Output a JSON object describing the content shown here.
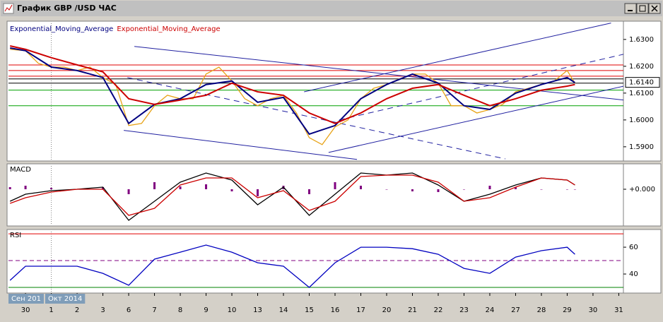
{
  "window": {
    "title": "График GBP /USD ЧАС"
  },
  "chart_data": [
    {
      "type": "line",
      "ylim": [
        1.5847,
        1.6368
      ],
      "yticks": [
        {
          "value": 1.63,
          "label": "1.6300"
        },
        {
          "value": 1.62,
          "label": "1.6200"
        },
        {
          "value": 1.61,
          "label": "1.6100"
        },
        {
          "value": 1.6,
          "label": "1.6000"
        },
        {
          "value": 1.59,
          "label": "1.5900"
        }
      ],
      "current_price": {
        "value": 1.614,
        "label": "1.6140"
      },
      "x": [
        -0.6,
        0,
        1,
        2,
        3,
        4,
        5,
        6,
        7,
        8,
        9,
        10,
        11,
        12,
        13,
        14,
        15,
        16,
        17,
        18,
        19,
        20,
        21,
        21.3
      ],
      "series": [
        {
          "color": "#e8a317",
          "x": [
            -0.6,
            0,
            0.5,
            1,
            1.5,
            2,
            2.5,
            3,
            3.5,
            4,
            4.5,
            5,
            5.5,
            6,
            6.5,
            7,
            7.5,
            8,
            8.5,
            9,
            9.5,
            10,
            10.5,
            11,
            11.5,
            12,
            12.5,
            13,
            13.5,
            14,
            14.5,
            15,
            15.5,
            16,
            16.5,
            17,
            17.5,
            18,
            18.5,
            19,
            19.5,
            20,
            20.5,
            21,
            21.3
          ],
          "values": [
            1.6263,
            1.6258,
            1.6211,
            1.6197,
            1.6197,
            1.6184,
            1.6197,
            1.6158,
            1.6132,
            1.5979,
            1.5987,
            1.6053,
            1.6092,
            1.6079,
            1.6079,
            1.6171,
            1.6197,
            1.6145,
            1.6079,
            1.6053,
            1.6079,
            1.6092,
            1.6026,
            1.5934,
            1.5908,
            1.5974,
            1.6,
            1.6079,
            1.6118,
            1.6132,
            1.6153,
            1.6171,
            1.6171,
            1.6137,
            1.6053,
            1.6053,
            1.6026,
            1.6039,
            1.6058,
            1.6105,
            1.6118,
            1.6132,
            1.6145,
            1.6184,
            1.6137
          ]
        },
        {
          "name": "Exponential_Moving_Average",
          "color": "#000080",
          "values": [
            1.6268,
            1.6258,
            1.6197,
            1.6184,
            1.6158,
            1.5987,
            1.6058,
            1.6079,
            1.6132,
            1.6145,
            1.6066,
            1.6084,
            1.5947,
            1.5979,
            1.6079,
            1.6132,
            1.6171,
            1.6137,
            1.6053,
            1.6039,
            1.61,
            1.6132,
            1.6158,
            1.6139
          ]
        },
        {
          "name": "Exponential_Moving_Average",
          "color": "#cc0000",
          "values": [
            1.6276,
            1.6263,
            1.6232,
            1.6205,
            1.6179,
            1.6079,
            1.6058,
            1.6074,
            1.6092,
            1.6137,
            1.6105,
            1.6092,
            1.6026,
            1.5987,
            1.6026,
            1.6079,
            1.6118,
            1.6132,
            1.6092,
            1.6053,
            1.6079,
            1.6111,
            1.6126,
            1.6132
          ]
        }
      ],
      "levels": [
        {
          "value": 1.6205,
          "color": "#e00000"
        },
        {
          "value": 1.6184,
          "color": "#e00000"
        },
        {
          "value": 1.6163,
          "color": "#e00000"
        },
        {
          "value": 1.6153,
          "color": "#000000"
        },
        {
          "value": 1.6137,
          "color": "#000000"
        },
        {
          "value": 1.6111,
          "color": "#00a000"
        },
        {
          "value": 1.6053,
          "color": "#00a000"
        }
      ],
      "trendlines": [
        {
          "x": [
            4.22,
            23.2
          ],
          "y": [
            1.6274,
            1.6074
          ],
          "dashed": false
        },
        {
          "x": [
            3.81,
            12.85
          ],
          "y": [
            1.5961,
            1.5853
          ],
          "dashed": false
        },
        {
          "x": [
            3.95,
            18.6
          ],
          "y": [
            1.6158,
            1.5855
          ],
          "dashed": true
        },
        {
          "x": [
            11.75,
            23.2
          ],
          "y": [
            1.5879,
            1.6126
          ],
          "dashed": false
        },
        {
          "x": [
            12.16,
            23.2
          ],
          "y": [
            1.6,
            1.6245
          ],
          "dashed": true
        },
        {
          "x": [
            10.8,
            22.7
          ],
          "y": [
            1.6105,
            1.6361
          ],
          "dashed": false
        }
      ],
      "trend_color": "#2020a0"
    },
    {
      "type": "line",
      "title": "MACD",
      "ylim": [
        -0.0052,
        0.0036
      ],
      "yticks": [
        {
          "value": 0,
          "label": "+0.000"
        }
      ],
      "x": [
        -0.6,
        0,
        1,
        2,
        3,
        4,
        5,
        6,
        7,
        8,
        9,
        10,
        11,
        12,
        13,
        14,
        15,
        16,
        17,
        18,
        19,
        20,
        21,
        21.3
      ],
      "histogram": {
        "color": "#800080",
        "values": [
          0.0003,
          0.0005,
          0.0002,
          0,
          0.0003,
          -0.0007,
          0.001,
          0.0004,
          0.0007,
          -0.0003,
          -0.001,
          0.0005,
          -0.0007,
          0.001,
          0.0005,
          0,
          -0.0003,
          -0.0004,
          0,
          0.0005,
          0.0003,
          0,
          0,
          0
        ]
      },
      "series": [
        {
          "color": "#000000",
          "values": [
            -0.0017,
            -0.0007,
            -0.0002,
            0,
            0.0003,
            -0.0044,
            -0.0017,
            0.001,
            0.0023,
            0.0013,
            -0.0022,
            0.0003,
            -0.0037,
            -0.0007,
            0.0023,
            0.002,
            0.0023,
            0.0006,
            -0.0017,
            -0.0007,
            0.0006,
            0.0016,
            0.0013,
            0.0006
          ]
        },
        {
          "color": "#cc0000",
          "values": [
            -0.002,
            -0.0012,
            -0.0004,
            0,
            0,
            -0.0037,
            -0.0027,
            0.0006,
            0.0016,
            0.0016,
            -0.0012,
            -0.0002,
            -0.003,
            -0.0017,
            0.0018,
            0.002,
            0.002,
            0.001,
            -0.0017,
            -0.0012,
            0.0003,
            0.0016,
            0.0013,
            0.0006
          ]
        }
      ]
    },
    {
      "type": "line",
      "title": "RSI",
      "ylim": [
        25.8,
        73.2
      ],
      "yticks": [
        60,
        40
      ],
      "levels": [
        {
          "value": 70,
          "color": "#e00000"
        },
        {
          "value": 50,
          "color": "#800080",
          "dashed": true
        },
        {
          "value": 30,
          "color": "#008000"
        }
      ],
      "x": [
        -0.6,
        0,
        1,
        2,
        3,
        4,
        5,
        6,
        7,
        8,
        9,
        10,
        11,
        12,
        13,
        14,
        15,
        16,
        17,
        18,
        19,
        20,
        21,
        21.3
      ],
      "series": [
        {
          "color": "#0000c0",
          "values": [
            35.3,
            45.8,
            45.8,
            45.8,
            40.5,
            31.6,
            51.1,
            56.3,
            61.6,
            56.3,
            48.4,
            45.8,
            30,
            48.4,
            60,
            60,
            58.9,
            54.7,
            44.2,
            40.5,
            52.6,
            57.4,
            60,
            54.7
          ]
        }
      ],
      "xlim": [
        -0.66,
        23.18
      ],
      "xticks": [
        {
          "value": 0,
          "label": "30"
        },
        {
          "value": 1,
          "label": "1"
        },
        {
          "value": 2,
          "label": "2"
        },
        {
          "value": 3,
          "label": "3"
        },
        {
          "value": 4,
          "label": "6"
        },
        {
          "value": 5,
          "label": "7"
        },
        {
          "value": 6,
          "label": "8"
        },
        {
          "value": 7,
          "label": "9"
        },
        {
          "value": 8,
          "label": "10"
        },
        {
          "value": 9,
          "label": "13"
        },
        {
          "value": 10,
          "label": "14"
        },
        {
          "value": 11,
          "label": "15"
        },
        {
          "value": 12,
          "label": "16"
        },
        {
          "value": 13,
          "label": "17"
        },
        {
          "value": 14,
          "label": "20"
        },
        {
          "value": 15,
          "label": "21"
        },
        {
          "value": 16,
          "label": "22"
        },
        {
          "value": 17,
          "label": "23"
        },
        {
          "value": 18,
          "label": "24"
        },
        {
          "value": 19,
          "label": "27"
        },
        {
          "value": 20,
          "label": "28"
        },
        {
          "value": 21,
          "label": "29"
        },
        {
          "value": 22,
          "label": "30"
        },
        {
          "value": 23,
          "label": "31"
        }
      ],
      "period_labels": [
        "Сен 201",
        "Окт 2014"
      ]
    }
  ]
}
